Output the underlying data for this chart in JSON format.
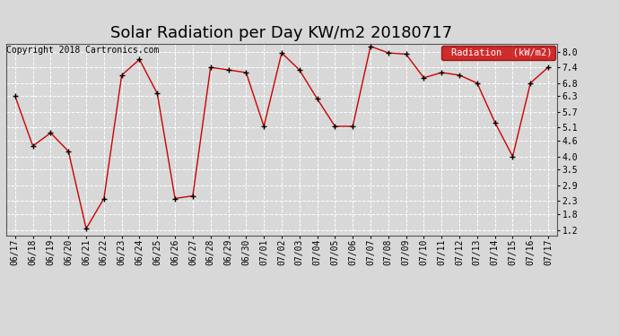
{
  "title": "Solar Radiation per Day KW/m2 20180717",
  "copyright": "Copyright 2018 Cartronics.com",
  "legend_label": "Radiation  (kW/m2)",
  "dates": [
    "06/17",
    "06/18",
    "06/19",
    "06/20",
    "06/21",
    "06/22",
    "06/23",
    "06/24",
    "06/25",
    "06/26",
    "06/27",
    "06/28",
    "06/29",
    "06/30",
    "07/01",
    "07/02",
    "07/03",
    "07/04",
    "07/05",
    "07/06",
    "07/07",
    "07/08",
    "07/09",
    "07/10",
    "07/11",
    "07/12",
    "07/13",
    "07/14",
    "07/15",
    "07/16",
    "07/17"
  ],
  "values": [
    6.3,
    4.4,
    4.9,
    4.2,
    1.25,
    2.4,
    7.1,
    7.7,
    6.4,
    2.4,
    2.5,
    7.4,
    7.3,
    7.2,
    5.15,
    7.95,
    7.3,
    6.2,
    5.15,
    5.15,
    8.2,
    7.95,
    7.9,
    7.0,
    7.2,
    7.1,
    6.8,
    5.3,
    4.0,
    6.8,
    7.4
  ],
  "line_color": "#cc0000",
  "marker_color": "#000000",
  "bg_color": "#d8d8d8",
  "plot_bg_color": "#d8d8d8",
  "grid_color": "#ffffff",
  "yticks": [
    1.2,
    1.8,
    2.3,
    2.9,
    3.5,
    4.0,
    4.6,
    5.1,
    5.7,
    6.3,
    6.8,
    7.4,
    8.0
  ],
  "ylim": [
    1.0,
    8.3
  ],
  "legend_bg": "#cc0000",
  "legend_text_color": "#ffffff",
  "title_fontsize": 13,
  "tick_fontsize": 7,
  "copyright_fontsize": 7
}
